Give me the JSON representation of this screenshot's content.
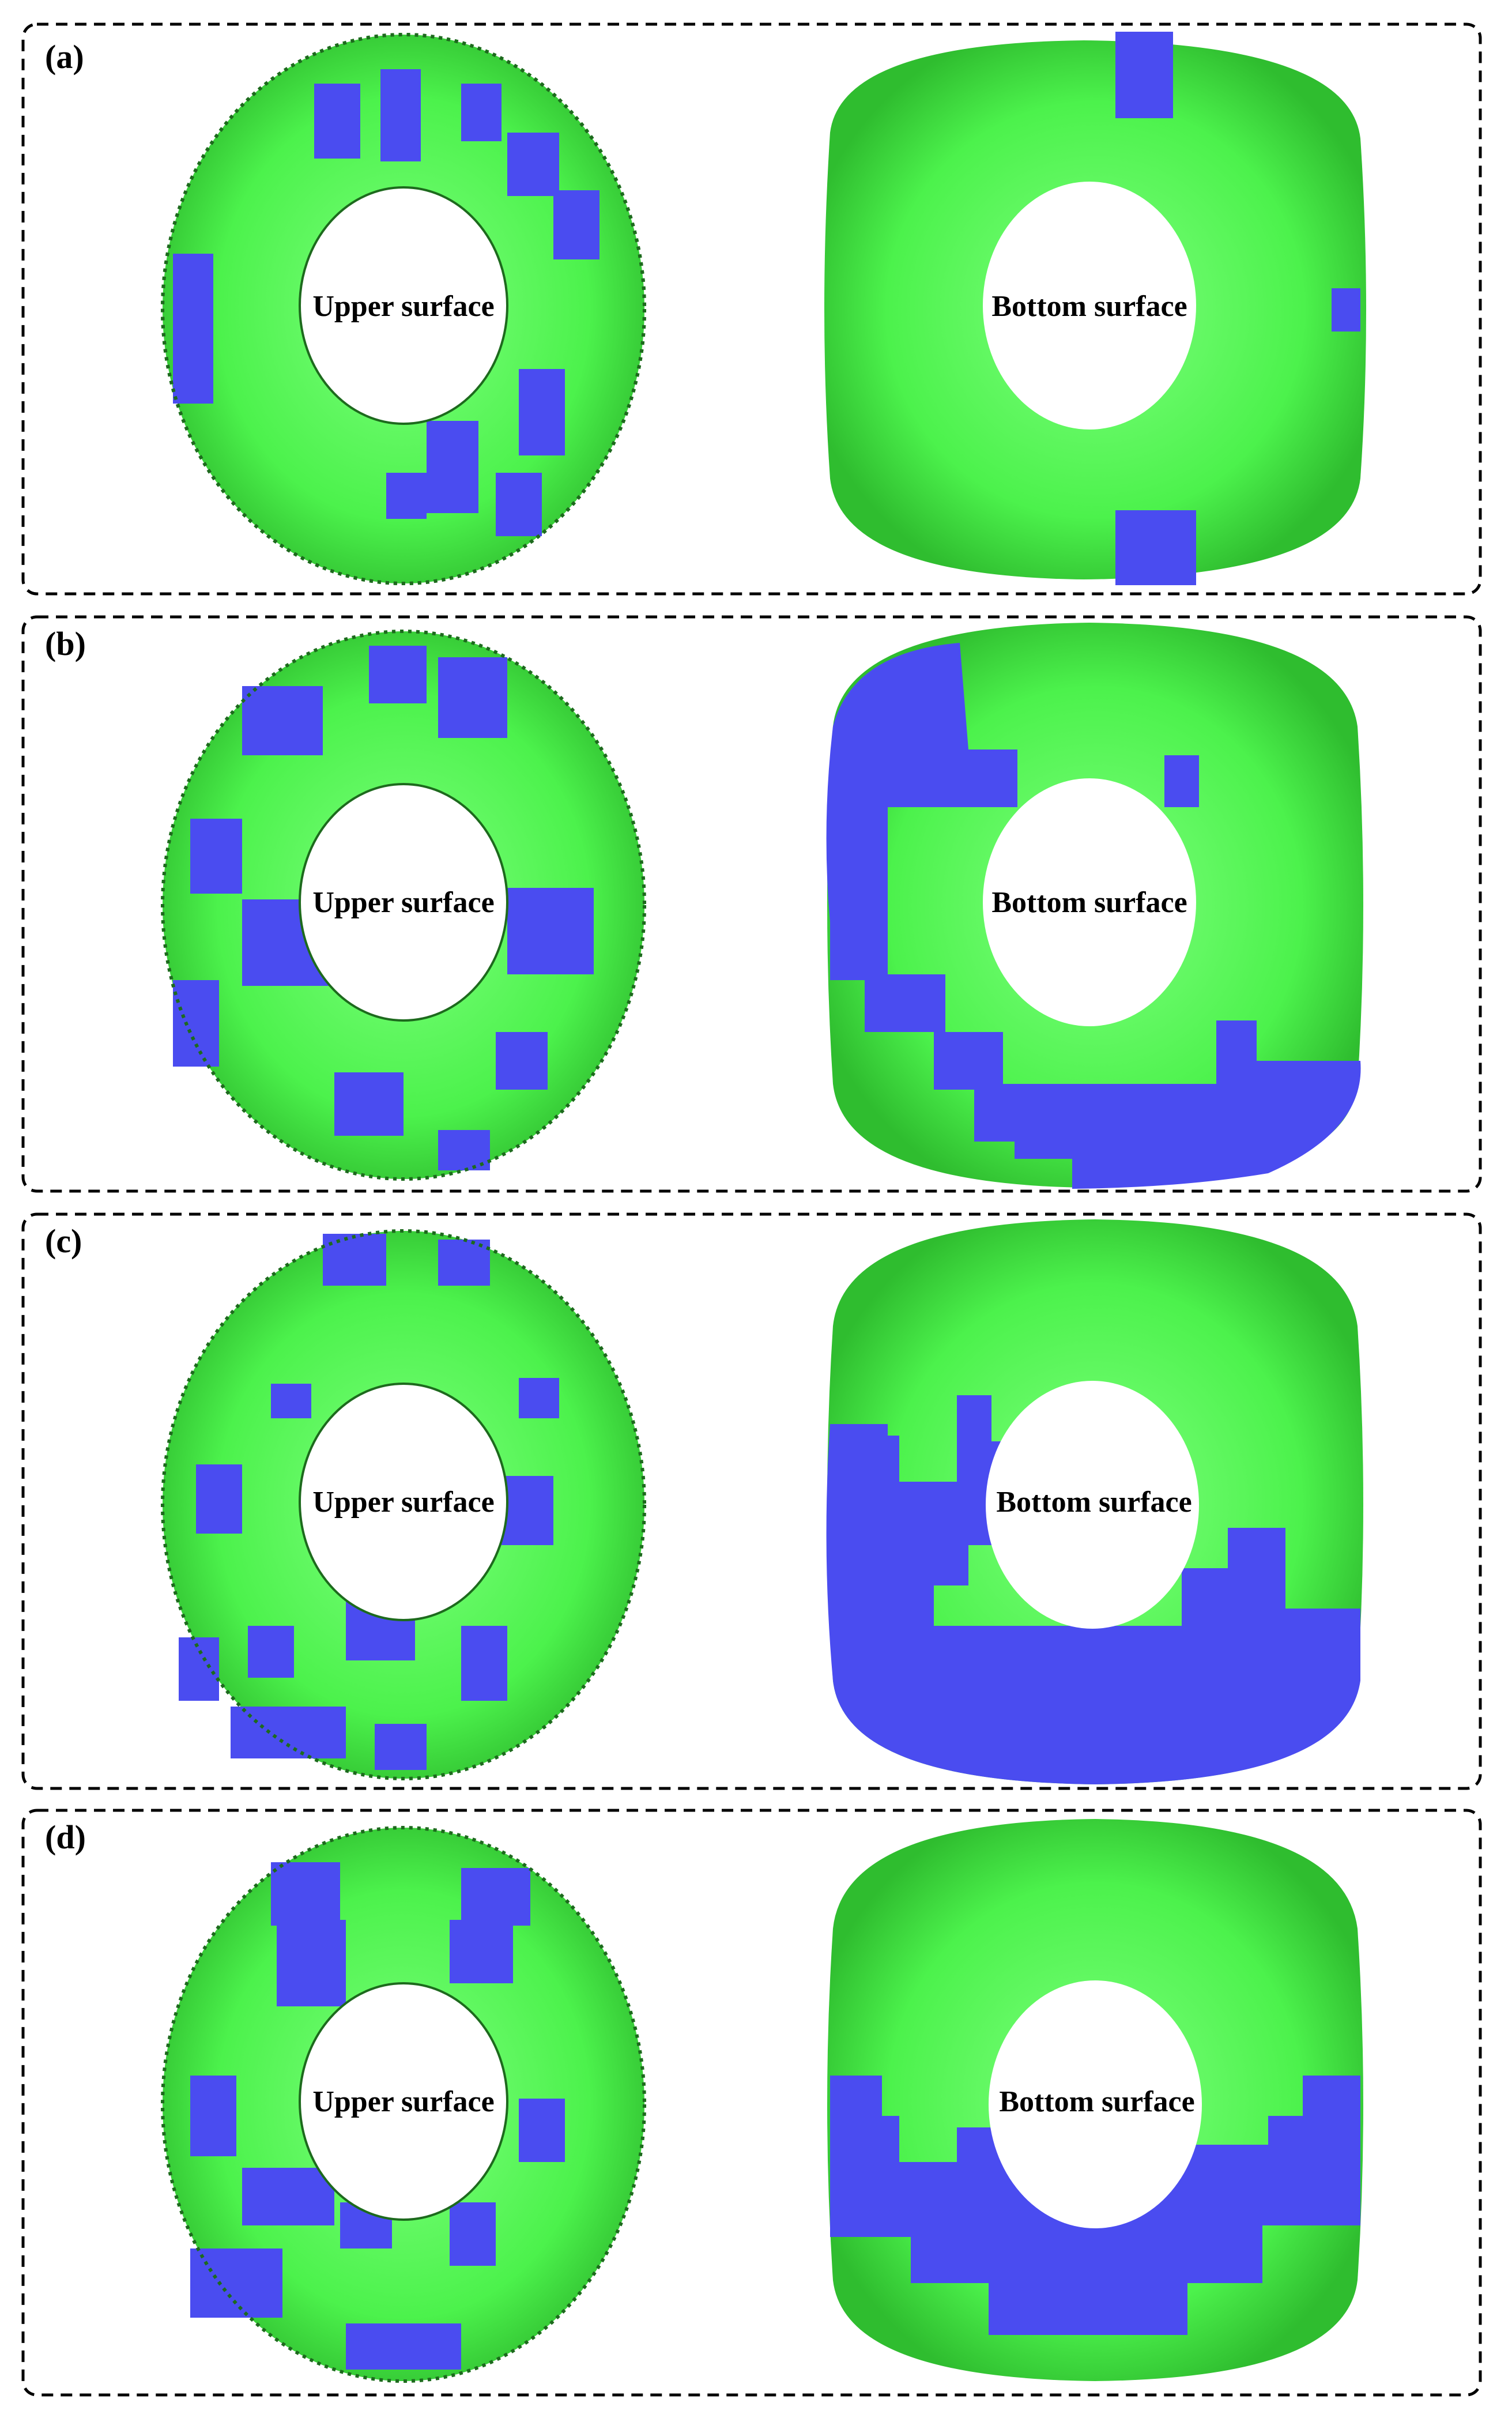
{
  "figure": {
    "panels": [
      {
        "label": "(a)",
        "upper_label": "Upper surface",
        "bottom_label": "Bottom surface"
      },
      {
        "label": "(b)",
        "upper_label": "Upper surface",
        "bottom_label": "Bottom surface"
      },
      {
        "label": "(c)",
        "upper_label": "Upper surface",
        "bottom_label": "Bottom surface"
      },
      {
        "label": "(d)",
        "upper_label": "Upper surface",
        "bottom_label": "Bottom surface"
      }
    ]
  },
  "colors": {
    "green": "#4cf24c",
    "blue": "#4a4cf0",
    "border": "#000000",
    "outline": "#1d6a1d"
  },
  "icons": {
    "upper": "tire-upper-surface",
    "bottom": "tire-bottom-surface"
  }
}
